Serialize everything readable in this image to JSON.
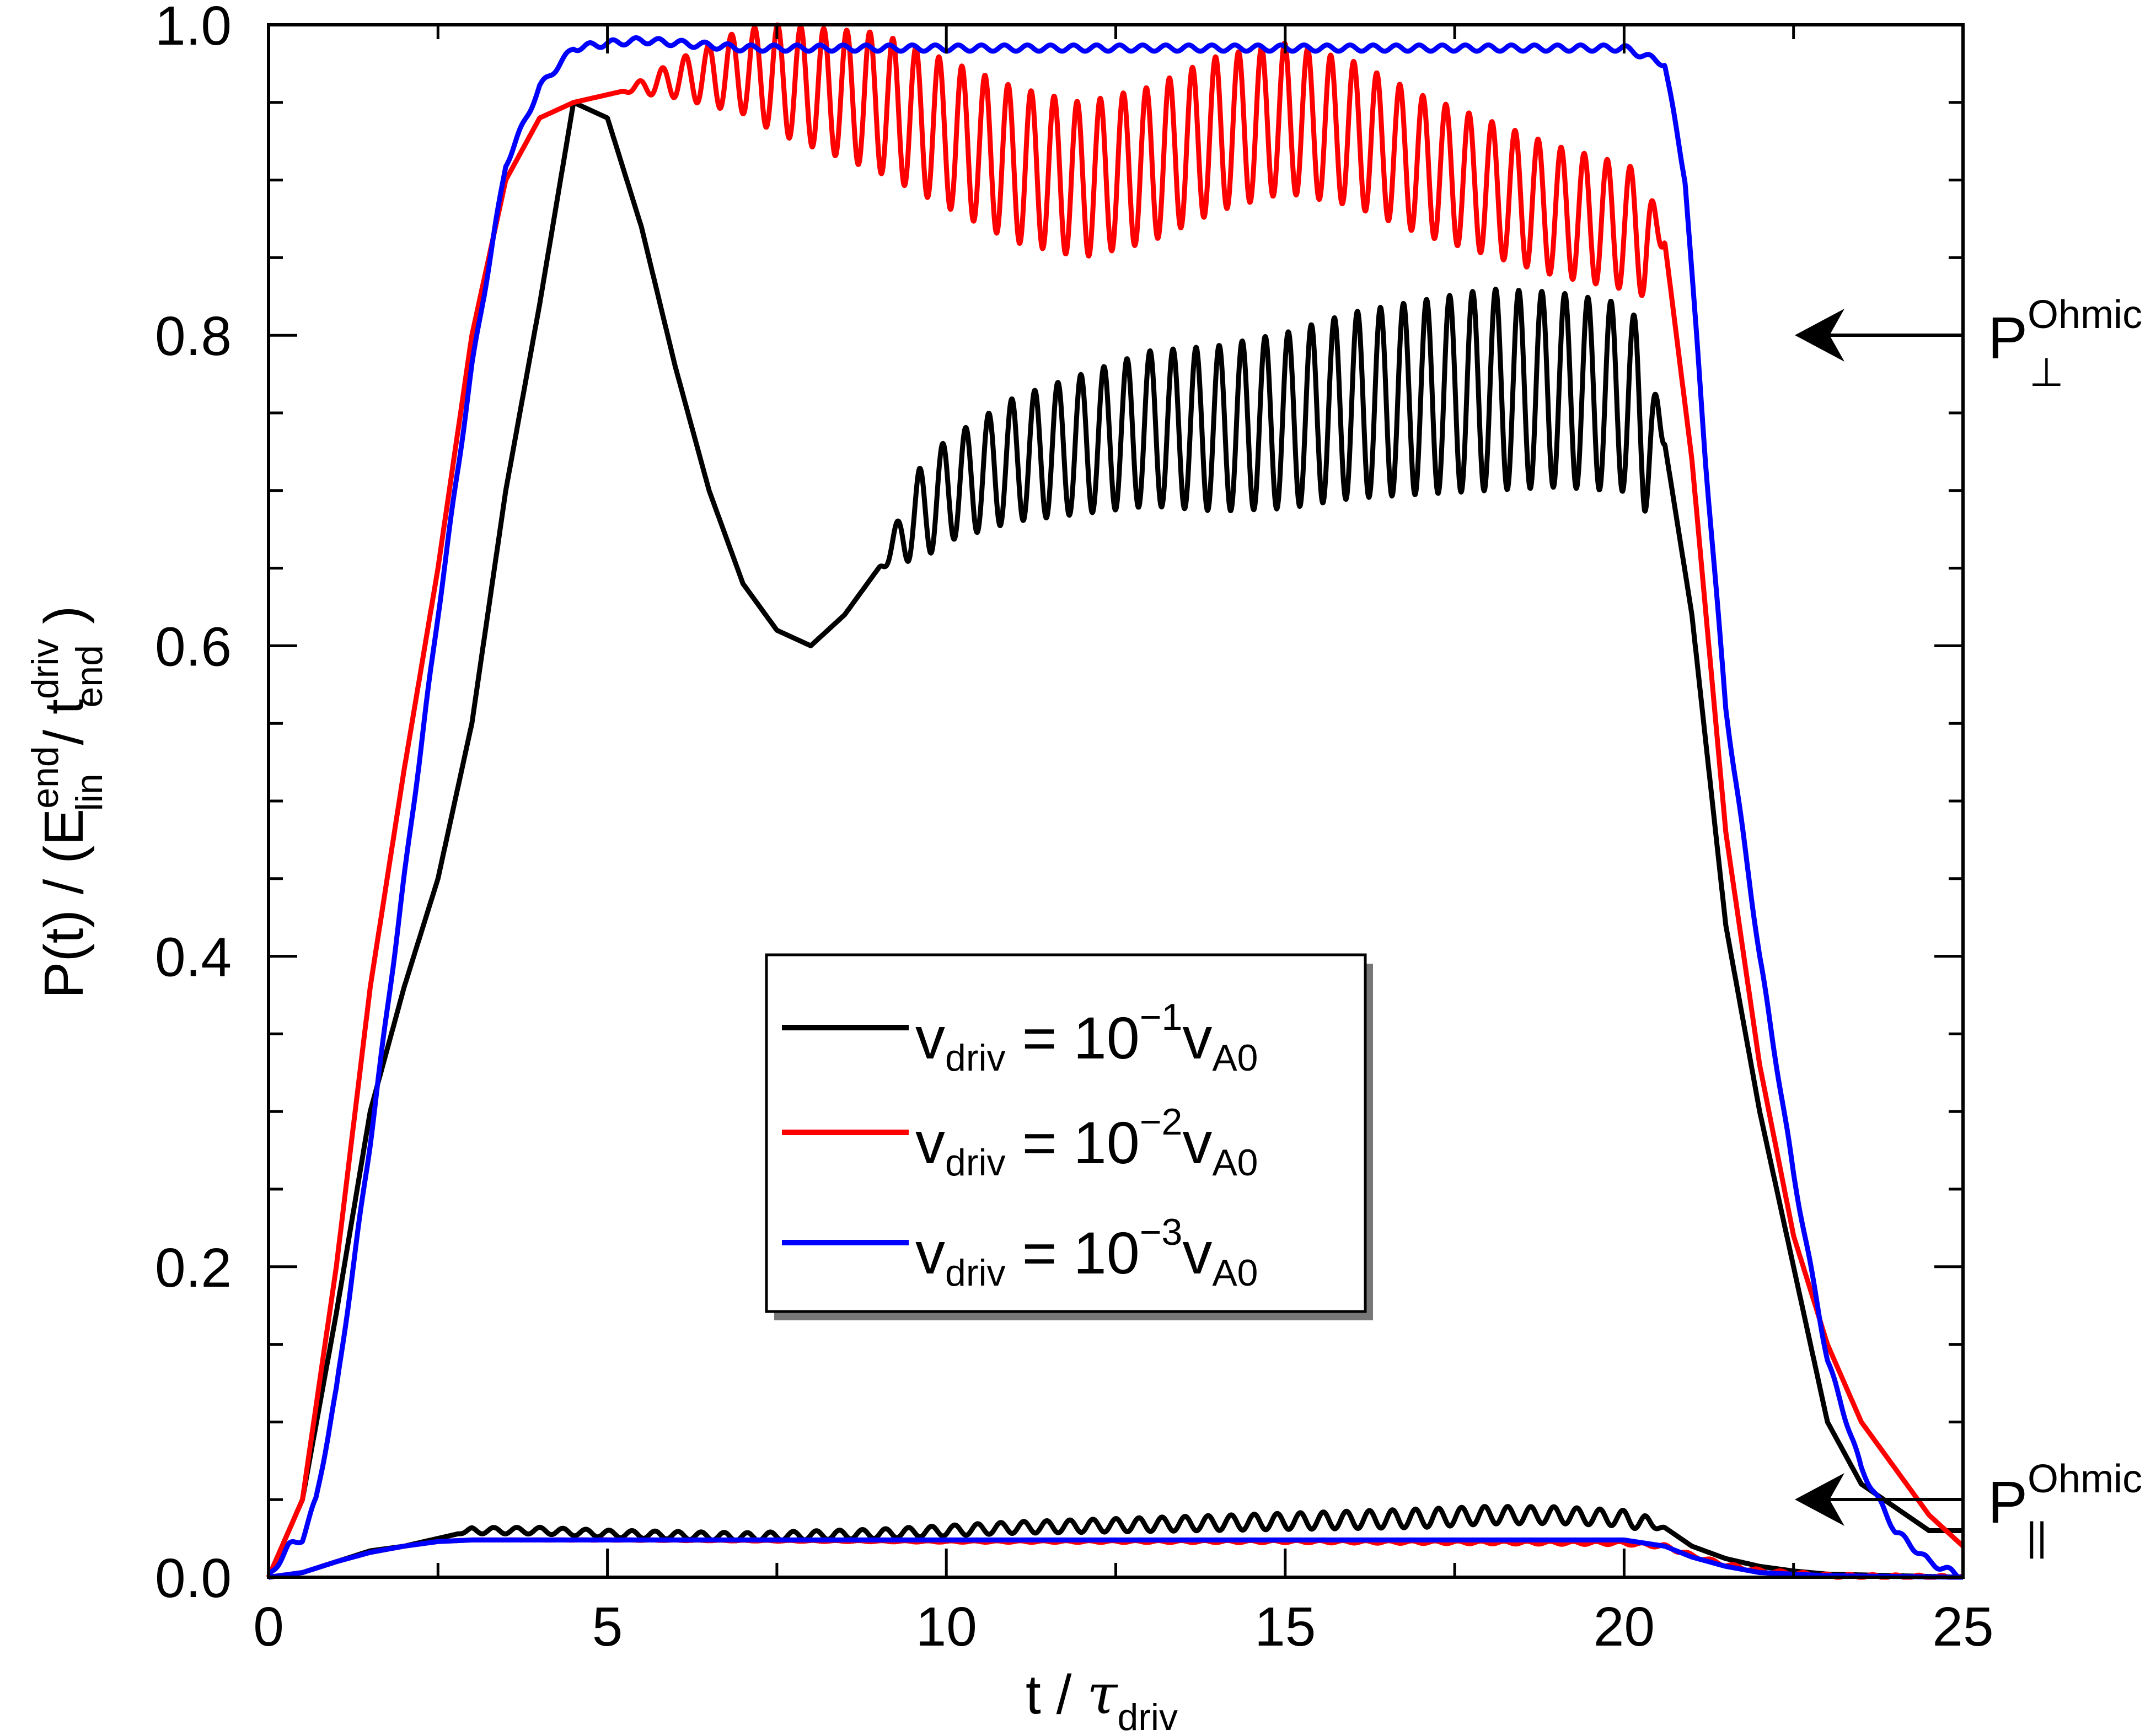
{
  "chart_data": {
    "type": "line",
    "title": "",
    "xlabel": {
      "main": "t / ",
      "tau": "τ",
      "sub": "driv"
    },
    "ylabel": {
      "p": "P(t) / (E",
      "sup1": "end",
      "sub1": "lin",
      "mid": " / t",
      "sup2": "driv",
      "sub2": "end",
      "close": ")"
    },
    "xlim": [
      0,
      25
    ],
    "ylim": [
      0,
      1
    ],
    "x_ticks": [
      0,
      5,
      10,
      15,
      20,
      25
    ],
    "x_tick_labels": [
      "0",
      "5",
      "10",
      "15",
      "20",
      "25"
    ],
    "y_ticks": [
      0.0,
      0.2,
      0.4,
      0.6,
      0.8,
      1.0
    ],
    "y_tick_labels": [
      "0.0",
      "0.2",
      "0.4",
      "0.6",
      "0.8",
      "1.0"
    ],
    "grid": false,
    "legend_position": "center-bottom",
    "legend": [
      {
        "series": "black",
        "v": "v",
        "sub": "driv",
        "eq": " = 10",
        "exp": "−1",
        "v2": "v",
        "sub2": "A0"
      },
      {
        "series": "red",
        "v": "v",
        "sub": "driv",
        "eq": " = 10",
        "exp": "−2",
        "v2": "v",
        "sub2": "A0"
      },
      {
        "series": "blue",
        "v": "v",
        "sub": "driv",
        "eq": " = 10",
        "exp": "−3",
        "v2": "v",
        "sub2": "A0"
      }
    ],
    "annotations": [
      {
        "name": "p-perp-ohmic",
        "y": 0.8,
        "main": "P",
        "sup": "Ohmic",
        "sub": "⊥"
      },
      {
        "name": "p-par-ohmic",
        "y": 0.05,
        "main": "P",
        "sup": "Ohmic",
        "sub": "||"
      }
    ],
    "colors": {
      "black": "#000000",
      "red": "#ff0000",
      "blue": "#0000ff"
    },
    "series": [
      {
        "name": "v_driv = 10^-1 v_A0 (perpendicular)",
        "color": "black",
        "x": [
          0,
          0.5,
          1,
          1.5,
          2,
          2.5,
          3,
          3.5,
          4,
          4.5,
          5,
          5.5,
          6,
          6.5,
          7,
          7.5,
          8,
          8.5,
          9,
          9.5,
          10,
          11,
          12,
          13,
          14,
          15,
          16,
          17,
          18,
          19,
          20,
          20.6,
          21,
          21.5,
          22,
          22.5,
          23,
          23.5,
          24,
          24.5,
          25
        ],
        "y": [
          0,
          0.05,
          0.17,
          0.3,
          0.38,
          0.45,
          0.55,
          0.7,
          0.82,
          0.95,
          0.94,
          0.87,
          0.78,
          0.7,
          0.64,
          0.61,
          0.6,
          0.62,
          0.65,
          0.68,
          0.7,
          0.72,
          0.73,
          0.74,
          0.74,
          0.745,
          0.755,
          0.76,
          0.765,
          0.765,
          0.76,
          0.73,
          0.62,
          0.42,
          0.3,
          0.2,
          0.1,
          0.06,
          0.045,
          0.03,
          0.03
        ],
        "osc": [
          [
            9,
            0.0
          ],
          [
            9.6,
            0.03
          ],
          [
            11,
            0.04
          ],
          [
            13,
            0.05
          ],
          [
            16,
            0.06
          ],
          [
            18,
            0.065
          ],
          [
            20.3,
            0.06
          ],
          [
            20.6,
            0.0
          ]
        ]
      },
      {
        "name": "v_driv = 10^-2 v_A0 (perpendicular)",
        "color": "red",
        "x": [
          0,
          0.5,
          1,
          1.5,
          2,
          2.5,
          3,
          3.5,
          4,
          4.5,
          5,
          6,
          7,
          8,
          9,
          10,
          11,
          12,
          13,
          14,
          15,
          16,
          17,
          18,
          19,
          20,
          20.6,
          21,
          21.5,
          22,
          22.5,
          23,
          23.5,
          24,
          24.5,
          25
        ],
        "y": [
          0,
          0.05,
          0.2,
          0.38,
          0.52,
          0.65,
          0.8,
          0.9,
          0.94,
          0.95,
          0.955,
          0.965,
          0.97,
          0.96,
          0.95,
          0.93,
          0.91,
          0.9,
          0.91,
          0.93,
          0.94,
          0.93,
          0.91,
          0.895,
          0.88,
          0.87,
          0.86,
          0.72,
          0.48,
          0.33,
          0.22,
          0.15,
          0.1,
          0.07,
          0.04,
          0.02
        ],
        "osc": [
          [
            5.2,
            0.0
          ],
          [
            6,
            0.012
          ],
          [
            7.5,
            0.035
          ],
          [
            9,
            0.045
          ],
          [
            11,
            0.05
          ],
          [
            14,
            0.05
          ],
          [
            17,
            0.045
          ],
          [
            20.3,
            0.04
          ],
          [
            20.6,
            0.0
          ]
        ]
      },
      {
        "name": "v_driv = 10^-3 v_A0 (perpendicular)",
        "color": "blue",
        "x": [
          0,
          0.3,
          0.5,
          0.7,
          1,
          1.5,
          2,
          2.5,
          3,
          3.5,
          4,
          4.5,
          5,
          5.5,
          7,
          10,
          15,
          20,
          20.6,
          20.9,
          21.2,
          21.5,
          22,
          22.5,
          23,
          23.5,
          24,
          24.5,
          25
        ],
        "y": [
          0,
          0.02,
          0.025,
          0.05,
          0.12,
          0.28,
          0.45,
          0.62,
          0.78,
          0.91,
          0.96,
          0.985,
          0.988,
          0.99,
          0.985,
          0.985,
          0.985,
          0.985,
          0.975,
          0.9,
          0.72,
          0.56,
          0.4,
          0.26,
          0.14,
          0.07,
          0.03,
          0.01,
          0.0
        ],
        "osc": [
          [
            4.5,
            0.002
          ],
          [
            20.5,
            0.002
          ]
        ]
      },
      {
        "name": "v_driv = 10^-1 v_A0 (parallel)",
        "color": "black",
        "x": [
          0,
          0.5,
          1,
          1.5,
          2,
          2.5,
          3,
          4,
          5,
          7,
          9,
          11,
          13,
          15,
          17,
          18,
          19,
          20,
          20.6,
          21,
          21.5,
          22,
          22.5,
          23,
          25
        ],
        "y": [
          0,
          0.003,
          0.01,
          0.017,
          0.02,
          0.025,
          0.03,
          0.03,
          0.028,
          0.026,
          0.028,
          0.032,
          0.034,
          0.036,
          0.038,
          0.04,
          0.04,
          0.038,
          0.032,
          0.02,
          0.012,
          0.007,
          0.004,
          0.002,
          0.0
        ],
        "osc": [
          [
            2.8,
            0.0
          ],
          [
            3,
            0.002
          ],
          [
            9,
            0.003
          ],
          [
            17,
            0.006
          ],
          [
            20.3,
            0.005
          ],
          [
            20.6,
            0.0
          ]
        ]
      },
      {
        "name": "v_driv = 10^-2 v_A0 (parallel)",
        "color": "red",
        "x": [
          0,
          0.5,
          1,
          1.5,
          2,
          2.5,
          3,
          5,
          10,
          15,
          20,
          20.6,
          21,
          21.5,
          22,
          23,
          25
        ],
        "y": [
          0,
          0.003,
          0.01,
          0.016,
          0.02,
          0.023,
          0.024,
          0.024,
          0.023,
          0.023,
          0.022,
          0.02,
          0.014,
          0.008,
          0.004,
          0.001,
          0.0
        ],
        "osc": [
          [
            3,
            0.0
          ],
          [
            20,
            0.001
          ]
        ]
      },
      {
        "name": "v_driv = 10^-3 v_A0 (parallel)",
        "color": "blue",
        "x": [
          0,
          0.5,
          1,
          1.5,
          2,
          2.5,
          3,
          5,
          10,
          15,
          20,
          20.6,
          21,
          21.5,
          22,
          23,
          25
        ],
        "y": [
          0,
          0.003,
          0.01,
          0.016,
          0.02,
          0.023,
          0.024,
          0.024,
          0.024,
          0.024,
          0.024,
          0.02,
          0.013,
          0.007,
          0.003,
          0.001,
          0.0
        ],
        "osc": [
          [
            0,
            0.0
          ]
        ]
      }
    ]
  }
}
